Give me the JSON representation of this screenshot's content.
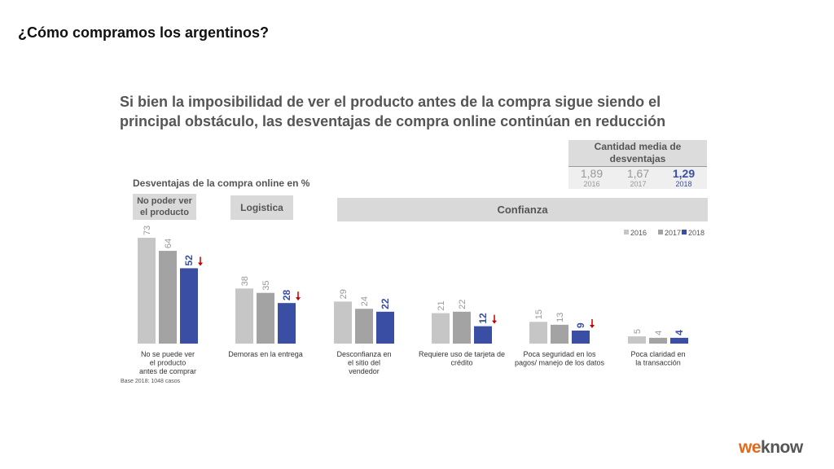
{
  "page_title": "¿Cómo compramos los argentinos?",
  "headline": "Si bien la imposibilidad de ver el producto antes de la compra sigue siendo el principal obstáculo, las desventajas de compra online continúan en reducción",
  "avg_box": {
    "header": "Cantidad media de desventajas",
    "items": [
      {
        "value": "1,89",
        "year": "2016"
      },
      {
        "value": "1,67",
        "year": "2017"
      },
      {
        "value": "1,29",
        "year": "2018"
      }
    ]
  },
  "groups": {
    "no_poder": "No poder ver el producto",
    "logistica": "Logistica",
    "confianza": "Confianza"
  },
  "base_note": "Base 2018: 1048 casos",
  "logo": {
    "part1": "we",
    "part2": "know"
  },
  "colors": {
    "2016": "#c6c6c6",
    "2017": "#a3a3a3",
    "2018": "#3a4fa3",
    "arrow": "#c00000"
  },
  "chart_data": {
    "type": "bar",
    "title": "Desventajas de la compra online en %",
    "categories": [
      "No se puede ver el producto antes de comprar",
      "Demoras en la entrega",
      "Desconfianza en el sitio del vendedor",
      "Requiere uso de tarjeta de crédito",
      "Poca seguridad en los pagos/ manejo de los datos",
      "Poca claridad en la transacción"
    ],
    "category_lines": [
      [
        "No se puede ver",
        "el producto",
        "antes de comprar"
      ],
      [
        "Demoras en la entrega"
      ],
      [
        "Desconfianza en",
        "el sitio del",
        "vendedor"
      ],
      [
        "Requiere uso de tarjeta de",
        "crédito"
      ],
      [
        "Poca seguridad en los",
        "pagos/ manejo de los datos"
      ],
      [
        "Poca claridad en",
        "la transacción"
      ]
    ],
    "series": [
      {
        "name": "2016",
        "values": [
          73,
          38,
          29,
          21,
          15,
          5
        ]
      },
      {
        "name": "2017",
        "values": [
          64,
          35,
          24,
          22,
          13,
          4
        ]
      },
      {
        "name": "2018",
        "values": [
          52,
          28,
          22,
          12,
          9,
          4
        ]
      }
    ],
    "down_arrows_2018": [
      true,
      true,
      false,
      true,
      true,
      false
    ],
    "legend_position": "top-right",
    "grid": false
  }
}
